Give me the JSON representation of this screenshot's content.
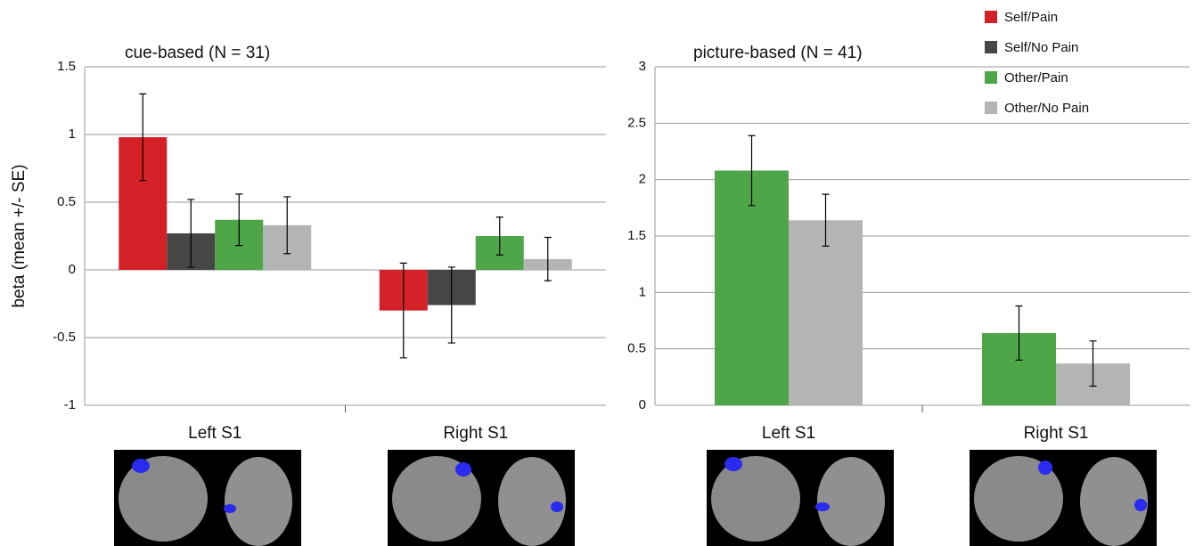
{
  "chart_data": [
    {
      "type": "bar",
      "title": "cue-based (N = 31)",
      "y_label": "beta (mean +/- SE)",
      "categories": [
        "Left S1",
        "Right S1"
      ],
      "ylim": [
        -1,
        1.5
      ],
      "yticks": [
        -1,
        -0.5,
        0,
        0.5,
        1,
        1.5
      ],
      "grid": true,
      "series": [
        {
          "name": "Self/Pain",
          "color": "#d42027",
          "values": [
            0.98,
            -0.3
          ],
          "errors": [
            0.32,
            0.35
          ]
        },
        {
          "name": "Self/No Pain",
          "color": "#464646",
          "values": [
            0.27,
            -0.26
          ],
          "errors": [
            0.25,
            0.28
          ]
        },
        {
          "name": "Other/Pain",
          "color": "#4ea648",
          "values": [
            0.37,
            0.25
          ],
          "errors": [
            0.19,
            0.14
          ]
        },
        {
          "name": "Other/No Pain",
          "color": "#b4b4b4",
          "values": [
            0.33,
            0.08
          ],
          "errors": [
            0.21,
            0.16
          ]
        }
      ]
    },
    {
      "type": "bar",
      "title": "picture-based (N = 41)",
      "categories": [
        "Left S1",
        "Right S1"
      ],
      "ylim": [
        0,
        3
      ],
      "yticks": [
        0,
        0.5,
        1,
        1.5,
        2,
        2.5,
        3
      ],
      "grid": true,
      "legend": "top-right",
      "series": [
        {
          "name": "Other/Pain",
          "color": "#4ea648",
          "values": [
            2.08,
            0.64
          ],
          "errors": [
            0.31,
            0.24
          ]
        },
        {
          "name": "Other/No Pain",
          "color": "#b4b4b4",
          "values": [
            1.64,
            0.37
          ],
          "errors": [
            0.23,
            0.2
          ]
        }
      ]
    }
  ]
}
